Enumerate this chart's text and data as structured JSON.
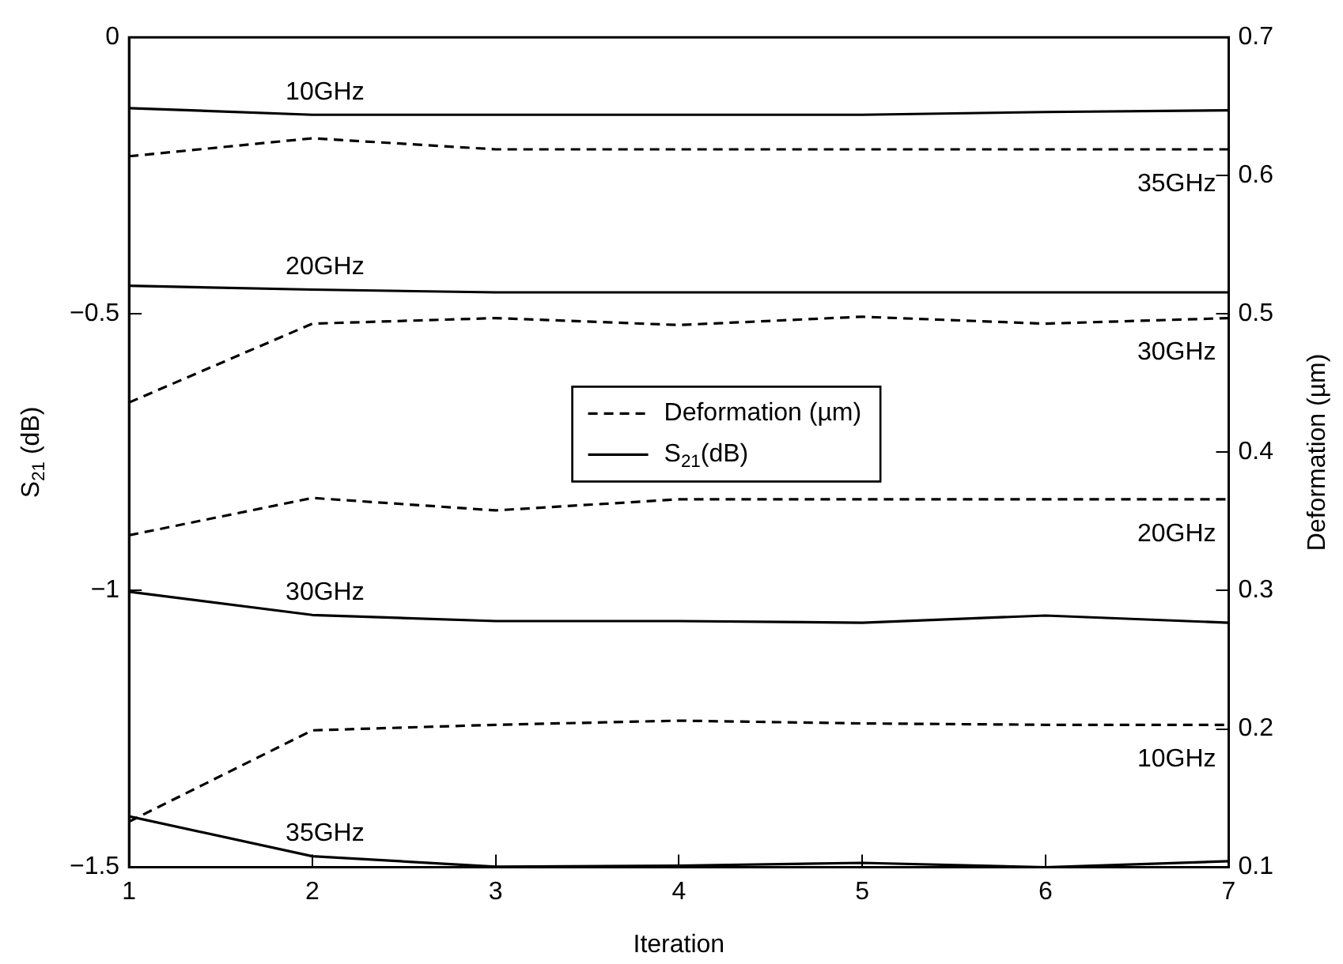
{
  "chart_data": {
    "type": "line",
    "xlabel": "Iteration",
    "ylabel": "S$_{21}$ (dB)",
    "y2label": "Deformation (µm)",
    "x": [
      1,
      2,
      3,
      4,
      5,
      6,
      7
    ],
    "xlim": [
      1,
      7
    ],
    "xticks": [
      1,
      2,
      3,
      4,
      5,
      6,
      7
    ],
    "ylim": [
      -1.5,
      0
    ],
    "yticks": [
      -1.5,
      -1,
      -0.5,
      0
    ],
    "y2lim": [
      0.1,
      0.7
    ],
    "y2ticks": [
      0.1,
      0.2,
      0.3,
      0.4,
      0.5,
      0.6,
      0.7
    ],
    "grid": false,
    "marker": "none",
    "legend": "center",
    "series": [
      {
        "name": "35GHz",
        "color": "#000000",
        "axis": "y2",
        "line_style": "dashed",
        "values": [
          0.614,
          0.627,
          0.619,
          0.619,
          0.619,
          0.619,
          0.619
        ]
      },
      {
        "name": "30GHz",
        "color": "#000000",
        "axis": "y2",
        "line_style": "dashed",
        "values": [
          0.436,
          0.493,
          0.497,
          0.492,
          0.498,
          0.493,
          0.497
        ]
      },
      {
        "name": "20GHz",
        "color": "#000000",
        "axis": "y2",
        "line_style": "dashed",
        "values": [
          0.34,
          0.367,
          0.358,
          0.366,
          0.366,
          0.366,
          0.366
        ]
      },
      {
        "name": "10GHz",
        "color": "#000000",
        "axis": "y2",
        "line_style": "dashed",
        "values": [
          0.133,
          0.199,
          0.203,
          0.206,
          0.204,
          0.203,
          0.203
        ]
      },
      {
        "name": "10GHz",
        "color": "#000000",
        "line_style": "solid",
        "values": [
          -0.128,
          -0.14,
          -0.14,
          -0.14,
          -0.14,
          -0.135,
          -0.132
        ]
      },
      {
        "name": "20GHz",
        "color": "#000000",
        "line_style": "solid",
        "values": [
          -0.449,
          -0.456,
          -0.461,
          -0.461,
          -0.461,
          -0.461,
          -0.461
        ]
      },
      {
        "name": "30GHz",
        "color": "#000000",
        "line_style": "solid",
        "values": [
          -1.002,
          -1.044,
          -1.055,
          -1.055,
          -1.058,
          -1.045,
          -1.058
        ]
      },
      {
        "name": "35GHz",
        "color": "#000000",
        "line_style": "solid",
        "values": [
          -1.408,
          -1.48,
          -1.499,
          -1.497,
          -1.492,
          -1.5,
          -1.489
        ]
      }
    ],
    "annotations": [
      "Deformation (µm)",
      "S$_{21}$(dB)"
    ]
  }
}
